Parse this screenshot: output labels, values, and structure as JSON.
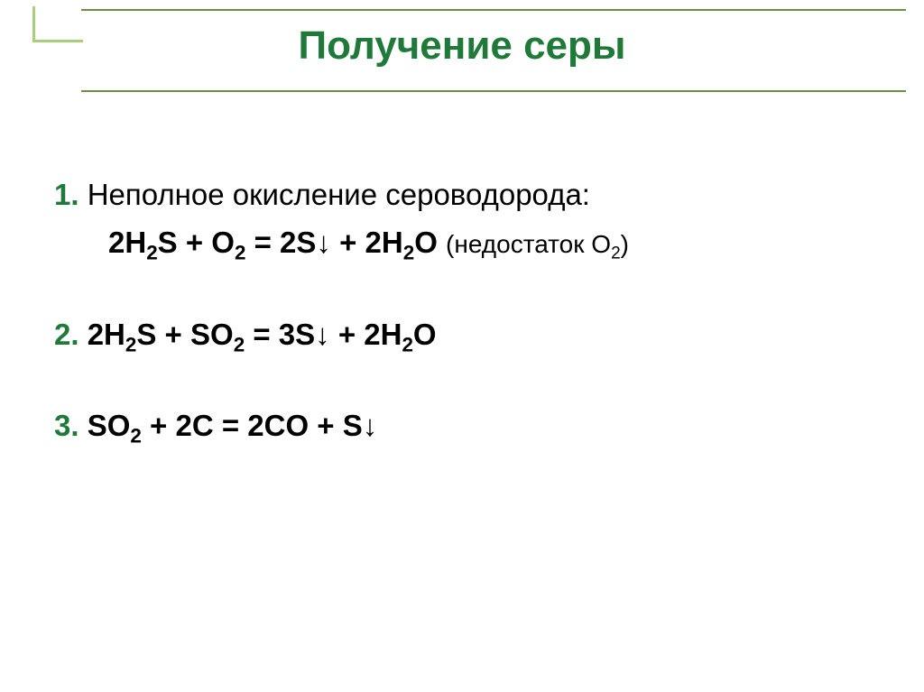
{
  "title": "Получение серы",
  "colors": {
    "accent": "#1f7a3a",
    "rule": "#6d8e46",
    "corner": "#a9cf7a",
    "text": "#000000",
    "background": "#ffffff"
  },
  "typography": {
    "title_fontsize": 44,
    "body_fontsize": 33,
    "note_fontsize": 28,
    "font_family": "Arial"
  },
  "items": [
    {
      "num": "1.",
      "label": "Неполное окисление сероводорода:",
      "eq_prefix": "2H",
      "eq_s1": "2",
      "eq_mid1": "S + O",
      "eq_s2": "2",
      "eq_mid2": " = 2S↓ + 2H",
      "eq_s3": "2",
      "eq_tail": "O ",
      "note_open": "(недостаток O",
      "note_sub": "2",
      "note_close": ")"
    },
    {
      "num": "2.",
      "eq_prefix": " 2H",
      "eq_s1": "2",
      "eq_mid1": "S + SO",
      "eq_s2": "2",
      "eq_mid2": " = 3S↓ + 2H",
      "eq_s3": "2",
      "eq_tail": "O"
    },
    {
      "num": "3.",
      "eq_prefix": " SO",
      "eq_s1": "2",
      "eq_mid1": "  + 2C = 2CO + S↓"
    }
  ]
}
